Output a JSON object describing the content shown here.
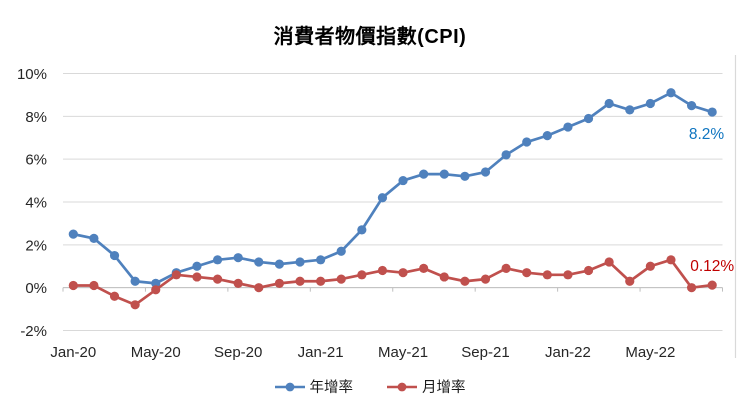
{
  "title": "消費者物價指數(CPI)",
  "chart_data": {
    "type": "line",
    "title": "消費者物價指數(CPI)",
    "categories": [
      "Jan-20",
      "Feb-20",
      "Mar-20",
      "Apr-20",
      "May-20",
      "Jun-20",
      "Jul-20",
      "Aug-20",
      "Sep-20",
      "Oct-20",
      "Nov-20",
      "Dec-20",
      "Jan-21",
      "Feb-21",
      "Mar-21",
      "Apr-21",
      "May-21",
      "Jun-21",
      "Jul-21",
      "Aug-21",
      "Sep-21",
      "Oct-21",
      "Nov-21",
      "Dec-21",
      "Jan-22",
      "Feb-22",
      "Mar-22",
      "Apr-22",
      "May-22",
      "Jun-22",
      "Jul-22",
      "Aug-22"
    ],
    "x_tick_labels": [
      "Jan-20",
      "May-20",
      "Sep-20",
      "Jan-21",
      "May-21",
      "Sep-21",
      "Jan-22",
      "May-22"
    ],
    "x_tick_every": 4,
    "y_ticks": [
      "10%",
      "8%",
      "6%",
      "4%",
      "2%",
      "0%",
      "-2%"
    ],
    "ylim": [
      -2,
      10
    ],
    "y_tick_step": 2,
    "grid": true,
    "legend_position": "bottom",
    "series": [
      {
        "name": "年增率",
        "color": "#4F81BD",
        "values": [
          2.5,
          2.3,
          1.5,
          0.3,
          0.2,
          0.7,
          1.0,
          1.3,
          1.4,
          1.2,
          1.1,
          1.2,
          1.3,
          1.7,
          2.7,
          4.2,
          5.0,
          5.3,
          5.3,
          5.2,
          5.4,
          6.2,
          6.8,
          7.1,
          7.5,
          7.9,
          8.6,
          8.3,
          8.6,
          9.1,
          8.5,
          8.2
        ]
      },
      {
        "name": "月增率",
        "color": "#C0504D",
        "values": [
          0.1,
          0.1,
          -0.4,
          -0.8,
          -0.1,
          0.6,
          0.5,
          0.4,
          0.2,
          0.0,
          0.2,
          0.3,
          0.3,
          0.4,
          0.6,
          0.8,
          0.7,
          0.9,
          0.5,
          0.3,
          0.4,
          0.9,
          0.7,
          0.6,
          0.6,
          0.8,
          1.2,
          0.3,
          1.0,
          1.3,
          0.0,
          0.12
        ]
      }
    ],
    "annotations": [
      {
        "text": "8.2%",
        "series": "年增率",
        "color": "#0F75C0"
      },
      {
        "text": "0.12%",
        "series": "月增率",
        "color": "#C00000"
      }
    ]
  },
  "colors": {
    "gridline": "#D9D9D9",
    "axis": "#BFBFBF",
    "axis_text": "#262626",
    "right_border": "#D9D9D9"
  }
}
